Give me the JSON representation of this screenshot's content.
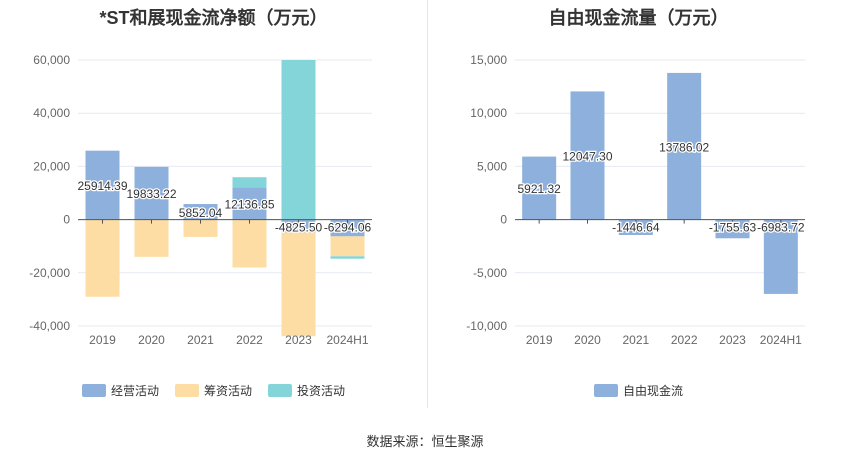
{
  "chart_data": [
    {
      "type": "bar",
      "stacked": true,
      "title": "*ST和展现金流净额（万元）",
      "categories": [
        "2019",
        "2020",
        "2021",
        "2022",
        "2023",
        "2024H1"
      ],
      "ylim": [
        -40000,
        60000
      ],
      "yticks": [
        -40000,
        -20000,
        0,
        20000,
        40000,
        60000
      ],
      "ytick_labels": [
        "-40,000",
        "-20,000",
        "0",
        "20,000",
        "40,000",
        "60,000"
      ],
      "series": [
        {
          "name": "经营活动",
          "color": "#8eb0dd",
          "values": [
            25914.39,
            19833.22,
            5852.04,
            12136.85,
            -4825.5,
            -6294.06
          ]
        },
        {
          "name": "筹资活动",
          "color": "#fddda3",
          "values": [
            -29000,
            -14000,
            -6500,
            -18000,
            -39000,
            -7500
          ]
        },
        {
          "name": "投资活动",
          "color": "#84d5da",
          "values": [
            0,
            0,
            0,
            3800,
            60000,
            -900
          ]
        }
      ],
      "data_labels": [
        "25914.39",
        "19833.22",
        "5852.04",
        "12136.85",
        "-4825.50",
        "-6294.06"
      ],
      "legend_position": "bottom",
      "grid": true
    },
    {
      "type": "bar",
      "title": "自由现金流量（万元）",
      "categories": [
        "2019",
        "2020",
        "2021",
        "2022",
        "2023",
        "2024H1"
      ],
      "ylim": [
        -10000,
        15000
      ],
      "yticks": [
        -10000,
        -5000,
        0,
        5000,
        10000,
        15000
      ],
      "ytick_labels": [
        "-10,000",
        "-5,000",
        "0",
        "5,000",
        "10,000",
        "15,000"
      ],
      "series": [
        {
          "name": "自由现金流",
          "color": "#8eb0dd",
          "values": [
            5921.32,
            12047.3,
            -1446.64,
            13786.02,
            -1755.63,
            -6983.72
          ]
        }
      ],
      "data_labels": [
        "5921.32",
        "12047.30",
        "-1446.64",
        "13786.02",
        "-1755.63",
        "-6983.72"
      ],
      "legend_position": "bottom",
      "grid": true
    }
  ],
  "source_text": "数据来源：恒生聚源"
}
